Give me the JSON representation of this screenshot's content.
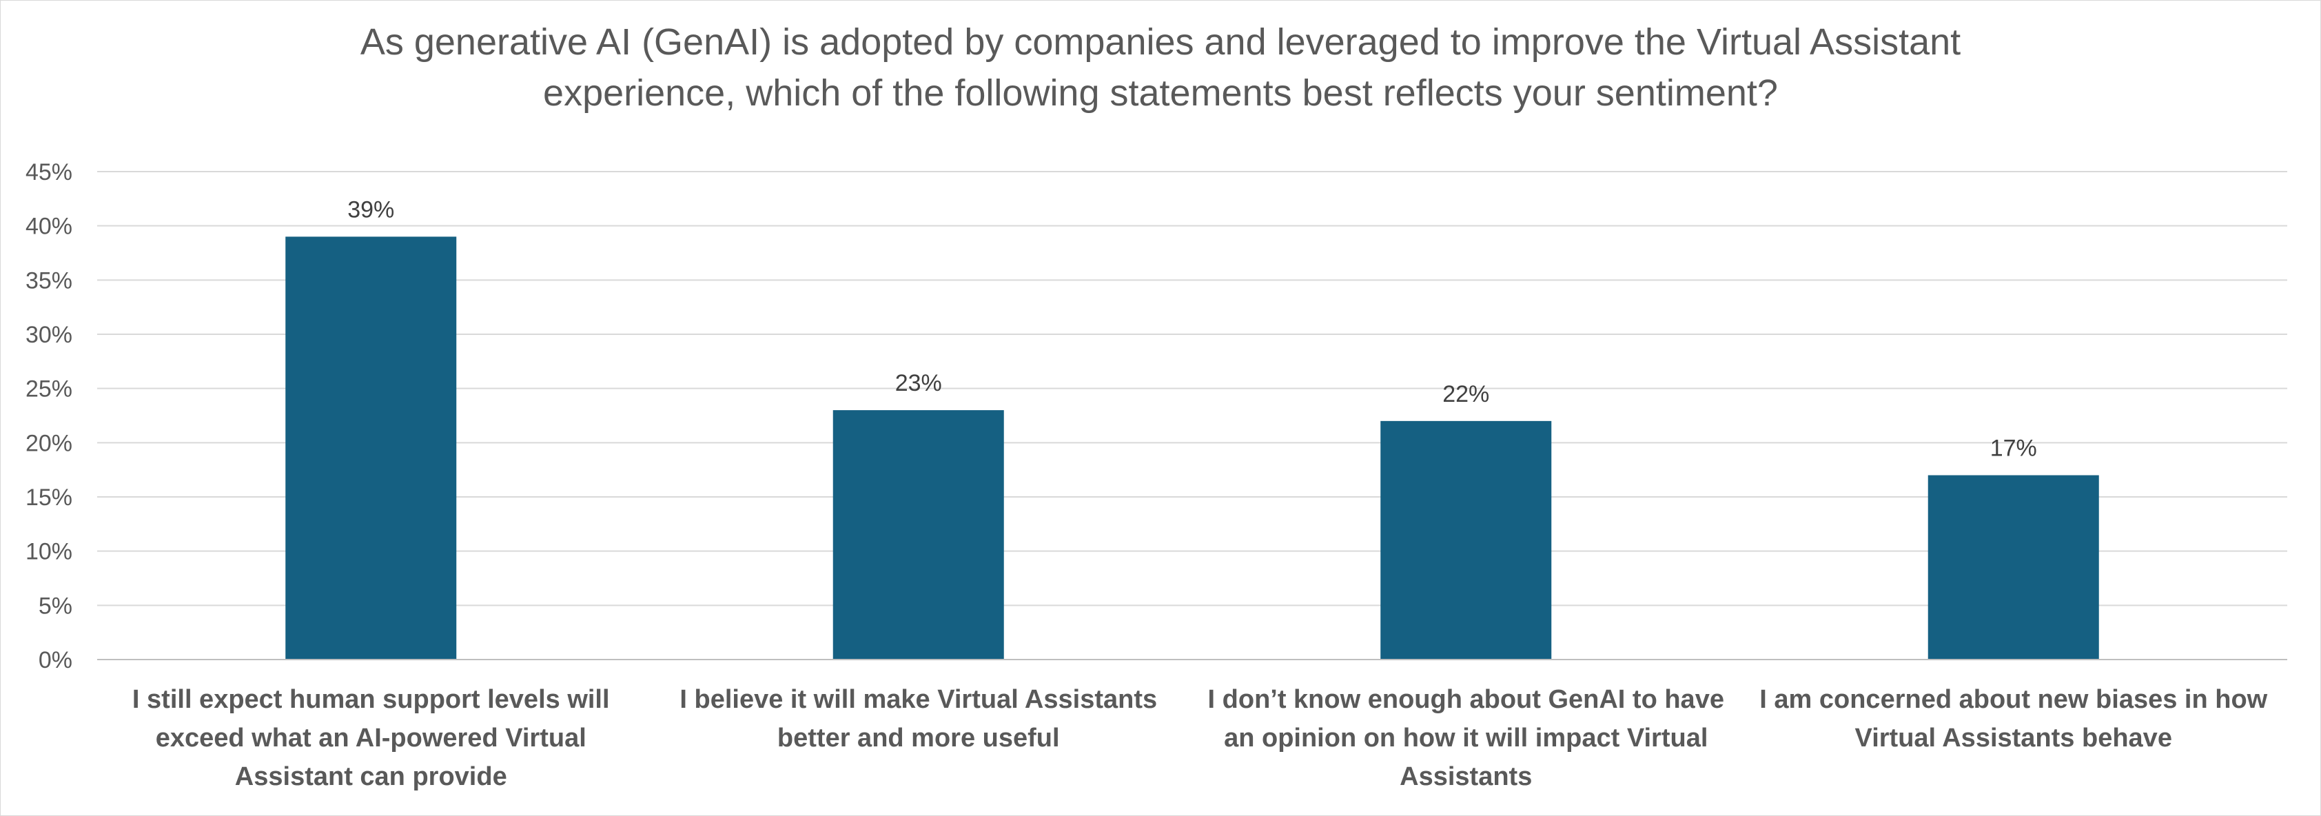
{
  "chart_data": {
    "type": "bar",
    "title_lines": [
      "As generative AI (GenAI) is adopted by companies and leveraged to improve the Virtual Assistant",
      "experience, which of the following statements best reflects your sentiment?"
    ],
    "categories": [
      [
        "I still expect human support levels will",
        "exceed what an AI-powered Virtual",
        "Assistant can provide"
      ],
      [
        "I believe it will make Virtual Assistants",
        "better and more useful"
      ],
      [
        "I don’t know enough about GenAI to have",
        "an opinion on how it will impact Virtual",
        "Assistants"
      ],
      [
        "I am concerned about new biases in how",
        "Virtual Assistants behave"
      ]
    ],
    "values": [
      39,
      23,
      22,
      17
    ],
    "data_labels": [
      "39%",
      "23%",
      "22%",
      "17%"
    ],
    "y_ticks": [
      "0%",
      "5%",
      "10%",
      "15%",
      "20%",
      "25%",
      "30%",
      "35%",
      "40%",
      "45%"
    ],
    "ylim": [
      0,
      45
    ],
    "y_step": 5,
    "grid": true,
    "legend": "none",
    "bar_color": "#156082"
  }
}
